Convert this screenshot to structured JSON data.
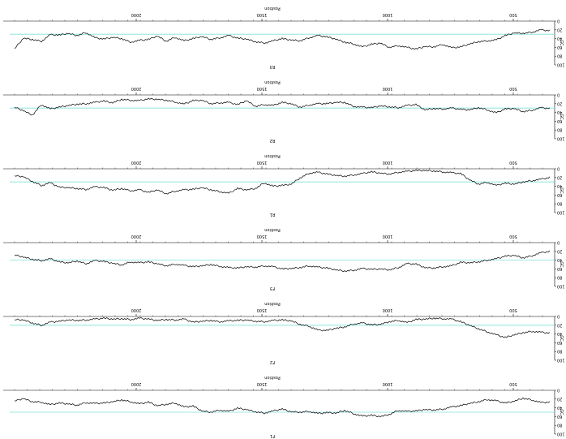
{
  "chart_data": {
    "type": "line",
    "orientation": "rotated 180 degrees",
    "colors": {
      "series": "#000000",
      "reference_line": "#7fe0d8"
    },
    "x_tick_labels": [
      "2000",
      "1500",
      "1000",
      "500"
    ],
    "y_tick_labels": [
      "0",
      "20",
      "40",
      "60",
      "80",
      "100"
    ],
    "ylim": [
      0,
      100
    ],
    "panels": [
      {
        "bottom_label": "F1",
        "top_label": "Position",
        "ylabel": "GC",
        "reference": 50,
        "values": [
          27,
          28,
          22,
          18,
          25,
          29,
          24,
          21,
          26,
          30,
          35,
          38,
          43,
          45,
          44,
          47,
          48,
          46,
          55,
          60,
          57,
          59,
          53,
          46,
          52,
          51,
          53,
          48,
          50,
          49,
          43,
          47,
          52,
          49,
          44,
          41,
          48,
          45,
          50,
          47,
          36,
          38,
          29,
          32,
          35,
          27,
          31,
          26,
          22,
          26,
          29,
          30,
          28,
          34,
          31,
          29,
          33,
          27,
          26,
          19,
          24
        ]
      },
      {
        "bottom_label": "F2",
        "top_label": "Position",
        "ylabel": "GC",
        "reference": 20,
        "values": [
          38,
          36,
          34,
          37,
          42,
          48,
          42,
          35,
          28,
          20,
          12,
          6,
          5,
          4,
          6,
          7,
          14,
          9,
          12,
          18,
          19,
          15,
          17,
          24,
          27,
          32,
          31,
          22,
          18,
          10,
          8,
          9,
          12,
          11,
          8,
          9,
          10,
          12,
          9,
          11,
          13,
          6,
          8,
          7,
          9,
          6,
          4,
          7,
          5,
          6,
          4,
          6,
          8,
          9,
          8,
          11,
          13,
          20,
          15,
          8,
          7
        ]
      },
      {
        "bottom_label": "F3",
        "top_label": "Position",
        "ylabel": "GC",
        "reference": 40,
        "values": [
          20,
          23,
          30,
          35,
          29,
          31,
          37,
          40,
          44,
          46,
          45,
          53,
          55,
          58,
          57,
          49,
          48,
          57,
          62,
          60,
          61,
          59,
          63,
          65,
          62,
          58,
          56,
          53,
          57,
          59,
          60,
          55,
          53,
          56,
          55,
          58,
          57,
          54,
          50,
          53,
          55,
          52,
          49,
          53,
          48,
          44,
          46,
          44,
          51,
          47,
          43,
          41,
          48,
          42,
          46,
          44,
          37,
          41,
          38,
          33,
          28
        ]
      },
      {
        "bottom_label": "R1",
        "top_label": "Position",
        "ylabel": "GC",
        "reference": 30,
        "values": [
          20,
          24,
          27,
          30,
          35,
          33,
          38,
          31,
          35,
          25,
          11,
          9,
          7,
          5,
          4,
          4,
          6,
          8,
          12,
          10,
          7,
          11,
          14,
          17,
          15,
          12,
          8,
          10,
          21,
          35,
          38,
          40,
          32,
          45,
          48,
          45,
          56,
          52,
          48,
          43,
          47,
          48,
          51,
          57,
          48,
          54,
          48,
          50,
          45,
          49,
          43,
          41,
          47,
          45,
          43,
          42,
          32,
          38,
          29,
          18,
          16
        ]
      },
      {
        "bottom_label": "R2",
        "top_label": "Position",
        "ylabel": "GC",
        "reference": 30,
        "values": [
          31,
          29,
          35,
          38,
          31,
          32,
          41,
          34,
          29,
          34,
          33,
          30,
          32,
          31,
          34,
          22,
          24,
          29,
          27,
          25,
          29,
          28,
          26,
          17,
          17,
          20,
          20,
          23,
          28,
          20,
          17,
          24,
          22,
          26,
          13,
          22,
          17,
          18,
          20,
          12,
          13,
          21,
          16,
          12,
          10,
          9,
          13,
          12,
          10,
          18,
          14,
          17,
          20,
          21,
          24,
          28,
          32,
          22,
          46,
          36,
          28
        ]
      },
      {
        "bottom_label": "R3",
        "top_label": "Position",
        "ylabel": "GC",
        "reference": 30,
        "values": [
          22,
          20,
          25,
          28,
          27,
          33,
          43,
          45,
          47,
          52,
          59,
          61,
          53,
          59,
          58,
          64,
          60,
          56,
          60,
          50,
          53,
          59,
          52,
          48,
          41,
          36,
          33,
          38,
          45,
          43,
          40,
          45,
          50,
          47,
          41,
          39,
          33,
          38,
          42,
          35,
          40,
          45,
          37,
          46,
          34,
          42,
          44,
          48,
          40,
          37,
          41,
          38,
          26,
          33,
          28,
          32,
          31,
          46,
          42,
          39,
          63
        ]
      }
    ]
  }
}
